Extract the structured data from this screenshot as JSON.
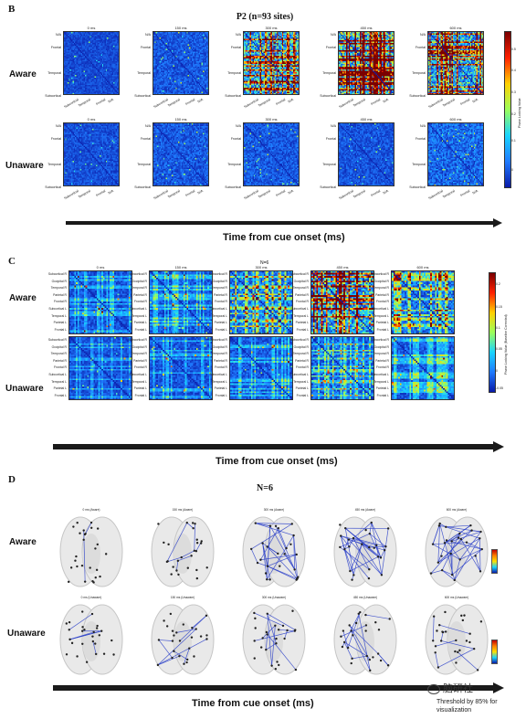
{
  "panelB": {
    "letter": "B",
    "title": "P2 (n=93 sites)",
    "rows": [
      "Aware",
      "Unaware"
    ],
    "times": [
      "0 ms",
      "150 ms",
      "300 ms",
      "450 ms",
      "600 ms"
    ],
    "yticks": [
      "N/A",
      "Frontal",
      "Temporal",
      "Subcortical"
    ],
    "xticks": [
      "Subcortical",
      "Temporal",
      "Frontal",
      "N/A"
    ],
    "colorbar_ticks": [
      "0.5",
      "0.4",
      "0.3",
      "0.2",
      "0.1",
      "0"
    ],
    "colorbar_label": "Phase Locking Value",
    "axis_label": "Time from cue onset  (ms)"
  },
  "panelC": {
    "letter": "C",
    "title": "N=6",
    "rows": [
      "Aware",
      "Unaware"
    ],
    "times": [
      "0 ms",
      "150 ms",
      "300 ms",
      "450 ms",
      "600 ms"
    ],
    "yticks": [
      "Subcortical R",
      "Occipital R",
      "Temporal R",
      "Parietal R",
      "Frontal R",
      "Subcortical L",
      "Temporal L",
      "Parietal L",
      "Frontal L"
    ],
    "xticks": [
      "Frontal L",
      "Parietal L",
      "Temporal L",
      "Subcortical L",
      "Frontal R",
      "Parietal R",
      "Temporal R",
      "Occipital R",
      "Subcortical R"
    ],
    "colorbar_ticks": [
      "0.2",
      "0.15",
      "0.1",
      "0.05",
      "0",
      "-0.05"
    ],
    "colorbar_label": "Phase Locking Value (Baseline Corrected)",
    "axis_label": "Time from cue onset  (ms)"
  },
  "panelD": {
    "letter": "D",
    "title": "N=6",
    "rows": [
      "Aware",
      "Unaware"
    ],
    "aware_times": [
      "0 ms (Aware)",
      "150 ms (Aware)",
      "300 ms (Aware)",
      "450 ms (Aware)",
      "600 ms (Aware)"
    ],
    "unaware_times": [
      "0 ms (Unaware)",
      "150 ms (Unaware)",
      "300 ms (Unaware)",
      "450 ms (Unaware)",
      "600 ms (Unaware)"
    ],
    "axis_label": "Time from cue onset  (ms)",
    "watermark": "脑研社",
    "footnote": "Threshold by 85% for visualization"
  },
  "colors": {
    "low": "#0a1aa8",
    "mid": "#1f7bff",
    "high": "#ffd000",
    "edge": "#2a3fc9",
    "arrow": "#1a1a1a"
  }
}
